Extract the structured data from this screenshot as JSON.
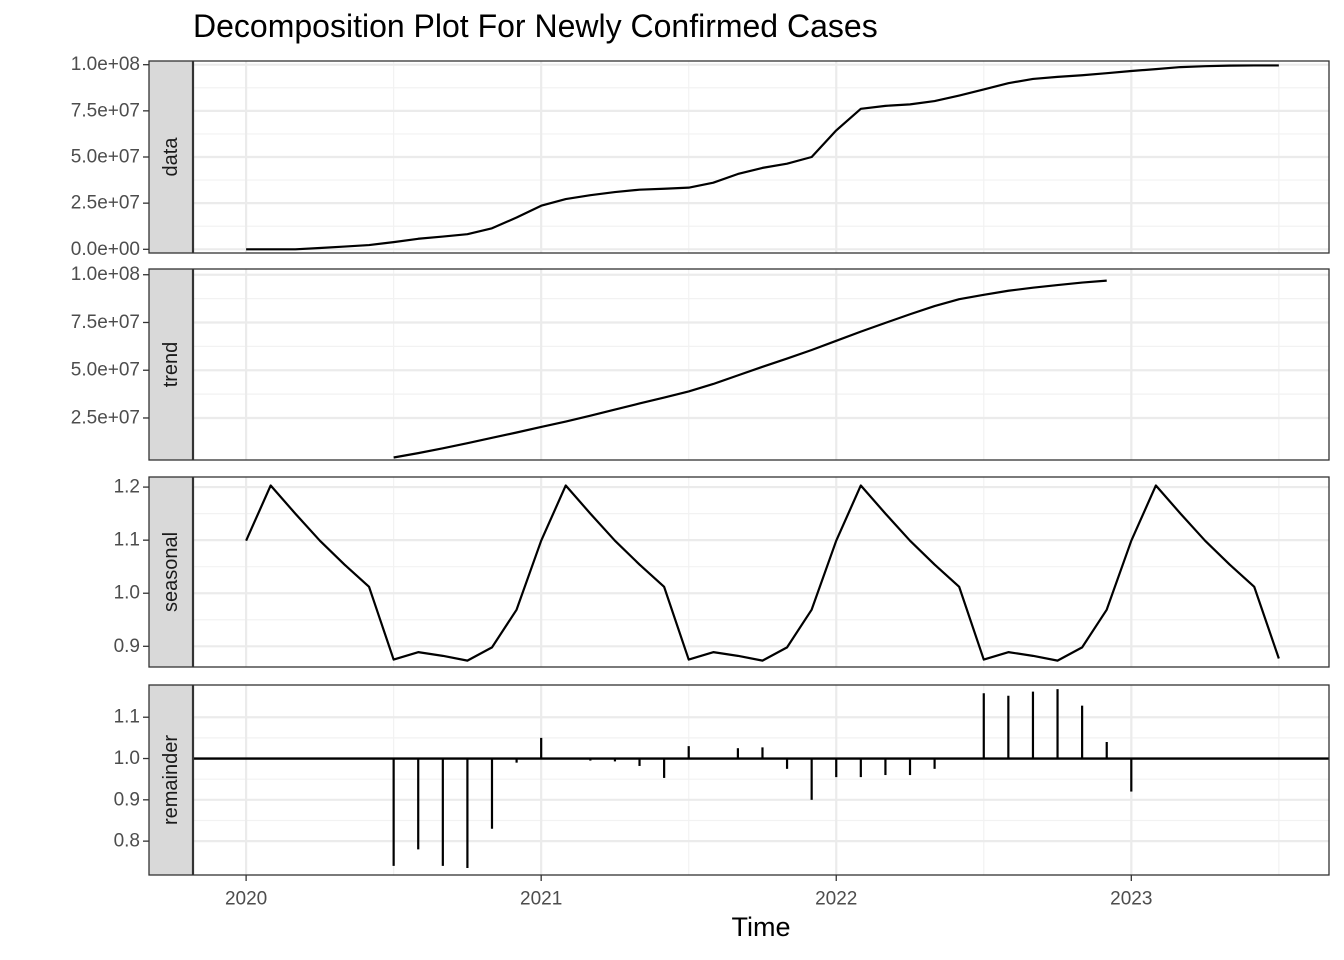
{
  "chart_data": {
    "type": "line",
    "title": "Decomposition Plot For Newly Confirmed Cases",
    "xlabel": "Time",
    "x_ticks": [
      2020,
      2021,
      2022,
      2023
    ],
    "x_tick_labels": [
      "2020",
      "2021",
      "2022",
      "2023"
    ],
    "xlim": [
      2019.82,
      2023.67
    ],
    "x": [
      2020.0,
      2020.0833,
      2020.1667,
      2020.25,
      2020.3333,
      2020.4167,
      2020.5,
      2020.5833,
      2020.6667,
      2020.75,
      2020.8333,
      2020.9167,
      2021.0,
      2021.0833,
      2021.1667,
      2021.25,
      2021.3333,
      2021.4167,
      2021.5,
      2021.5833,
      2021.6667,
      2021.75,
      2021.8333,
      2021.9167,
      2022.0,
      2022.0833,
      2022.1667,
      2022.25,
      2022.3333,
      2022.4167,
      2022.5,
      2022.5833,
      2022.6667,
      2022.75,
      2022.8333,
      2022.9167,
      2023.0,
      2023.0833,
      2023.1667,
      2023.25,
      2023.3333,
      2023.4167,
      2023.5
    ],
    "panels": [
      {
        "name": "data",
        "type": "line",
        "ylim": [
          -2000000,
          102000000
        ],
        "y_ticks": [
          0,
          25000000,
          50000000,
          75000000,
          100000000
        ],
        "y_tick_labels": [
          "0.0e+00",
          "2.5e+07",
          "5.0e+07",
          "7.5e+07",
          "1.0e+08"
        ],
        "values": [
          0,
          0,
          0,
          700000,
          1500000,
          2300000,
          3900000,
          5700000,
          6900000,
          8200000,
          11400000,
          17200000,
          23600000,
          27200000,
          29300000,
          31000000,
          32300000,
          32800000,
          33400000,
          36100000,
          40800000,
          44100000,
          46400000,
          50000000,
          64400000,
          76100000,
          77700000,
          78500000,
          80300000,
          83300000,
          86600000,
          90000000,
          92300000,
          93400000,
          94300000,
          95400000,
          96600000,
          97600000,
          98700000,
          99200000,
          99500000,
          99600000,
          99600000
        ]
      },
      {
        "name": "trend",
        "type": "line",
        "ylim": [
          3000000,
          103000000
        ],
        "y_ticks": [
          25000000,
          50000000,
          75000000,
          100000000
        ],
        "y_tick_labels": [
          "2.5e+07",
          "5.0e+07",
          "7.5e+07",
          "1.0e+08"
        ],
        "values": [
          null,
          null,
          null,
          null,
          null,
          null,
          4300000,
          6600000,
          9100000,
          11800000,
          14600000,
          17400000,
          20300000,
          23100000,
          26200000,
          29400000,
          32600000,
          35700000,
          38900000,
          42800000,
          47300000,
          51800000,
          56100000,
          60600000,
          65400000,
          70200000,
          74800000,
          79300000,
          83600000,
          87200000,
          89500000,
          91600000,
          93200000,
          94600000,
          95900000,
          96900000,
          null,
          null,
          null,
          null,
          null,
          null,
          null
        ]
      },
      {
        "name": "seasonal",
        "type": "line",
        "ylim": [
          0.861,
          1.219
        ],
        "y_ticks": [
          0.9,
          1.0,
          1.1,
          1.2
        ],
        "y_tick_labels": [
          "0.9",
          "1.0",
          "1.1",
          "1.2"
        ],
        "values": [
          1.099,
          1.203,
          1.15,
          1.099,
          1.054,
          1.012,
          0.875,
          0.889,
          0.882,
          0.873,
          0.898,
          0.969,
          1.099,
          1.203,
          1.15,
          1.099,
          1.054,
          1.012,
          0.875,
          0.889,
          0.882,
          0.873,
          0.898,
          0.969,
          1.099,
          1.203,
          1.15,
          1.099,
          1.054,
          1.012,
          0.875,
          0.889,
          0.882,
          0.873,
          0.898,
          0.969,
          1.099,
          1.203,
          1.15,
          1.099,
          1.054,
          1.012,
          0.877
        ]
      },
      {
        "name": "remainder",
        "type": "bar",
        "baseline": 1.0,
        "ylim": [
          0.718,
          1.178
        ],
        "y_ticks": [
          0.8,
          0.9,
          1.0,
          1.1
        ],
        "y_tick_labels": [
          "0.8",
          "0.9",
          "1.0",
          "1.1"
        ],
        "values": [
          null,
          null,
          null,
          null,
          null,
          null,
          0.74,
          0.78,
          0.74,
          0.735,
          0.83,
          0.99,
          1.05,
          0.998,
          0.995,
          0.993,
          0.982,
          0.953,
          1.03,
          1.0,
          1.025,
          1.027,
          0.975,
          0.9,
          0.955,
          0.955,
          0.96,
          0.96,
          0.975,
          1.0,
          1.158,
          1.152,
          1.162,
          1.168,
          1.128,
          1.04,
          0.92,
          null,
          null,
          null,
          null,
          null,
          null
        ]
      }
    ],
    "grid": true,
    "colors": {
      "line": "#000000",
      "strip_fill": "#d9d9d9",
      "grid_major": "#ebebeb",
      "grid_minor": "#f2f2f2",
      "panel_border": "#333333"
    }
  }
}
